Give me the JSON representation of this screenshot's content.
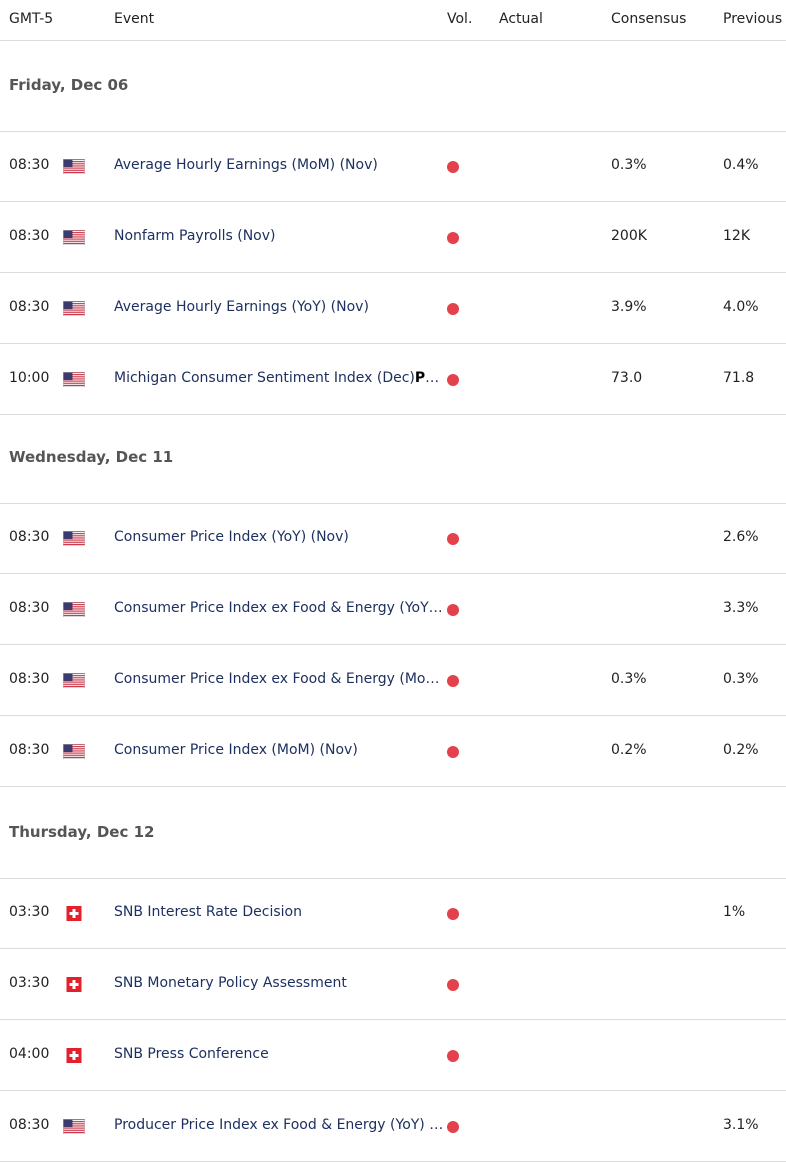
{
  "header": {
    "timezone": "GMT-5",
    "event": "Event",
    "vol": "Vol.",
    "actual": "Actual",
    "consensus": "Consensus",
    "previous": "Previous"
  },
  "colors": {
    "volume_high": "#e3424c",
    "event_text": "#1d3060",
    "divider": "#dcdcdc"
  },
  "sections": [
    {
      "date": "Friday, Dec 06",
      "rows": [
        {
          "time": "08:30",
          "flag": "us-flag-icon",
          "event": "Average Hourly Earnings (MoM) (Nov)",
          "tag": "",
          "actual": "",
          "consensus": "0.3%",
          "previous": "0.4%"
        },
        {
          "time": "08:30",
          "flag": "us-flag-icon",
          "event": "Nonfarm Payrolls (Nov)",
          "tag": "",
          "actual": "",
          "consensus": "200K",
          "previous": "12K"
        },
        {
          "time": "08:30",
          "flag": "us-flag-icon",
          "event": "Average Hourly Earnings (YoY) (Nov)",
          "tag": "",
          "actual": "",
          "consensus": "3.9%",
          "previous": "4.0%"
        },
        {
          "time": "10:00",
          "flag": "us-flag-icon",
          "event": "Michigan Consumer Sentiment Index (Dec)",
          "tag": "Pre…",
          "actual": "",
          "consensus": "73.0",
          "previous": "71.8"
        }
      ]
    },
    {
      "date": "Wednesday, Dec 11",
      "rows": [
        {
          "time": "08:30",
          "flag": "us-flag-icon",
          "event": "Consumer Price Index (YoY) (Nov)",
          "tag": "",
          "actual": "",
          "consensus": "",
          "previous": "2.6%"
        },
        {
          "time": "08:30",
          "flag": "us-flag-icon",
          "event": "Consumer Price Index ex Food & Energy (YoY) …",
          "tag": "",
          "actual": "",
          "consensus": "",
          "previous": "3.3%"
        },
        {
          "time": "08:30",
          "flag": "us-flag-icon",
          "event": "Consumer Price Index ex Food & Energy (MoM)…",
          "tag": "",
          "actual": "",
          "consensus": "0.3%",
          "previous": "0.3%"
        },
        {
          "time": "08:30",
          "flag": "us-flag-icon",
          "event": "Consumer Price Index (MoM) (Nov)",
          "tag": "",
          "actual": "",
          "consensus": "0.2%",
          "previous": "0.2%"
        }
      ]
    },
    {
      "date": "Thursday, Dec 12",
      "rows": [
        {
          "time": "03:30",
          "flag": "swiss-flag-icon",
          "event": "SNB Interest Rate Decision",
          "tag": "",
          "actual": "",
          "consensus": "",
          "previous": "1%"
        },
        {
          "time": "03:30",
          "flag": "swiss-flag-icon",
          "event": "SNB Monetary Policy Assessment",
          "tag": "",
          "actual": "",
          "consensus": "",
          "previous": ""
        },
        {
          "time": "04:00",
          "flag": "swiss-flag-icon",
          "event": "SNB Press Conference",
          "tag": "",
          "actual": "",
          "consensus": "",
          "previous": ""
        },
        {
          "time": "08:30",
          "flag": "us-flag-icon",
          "event": "Producer Price Index ex Food & Energy (YoY) (…",
          "tag": "",
          "actual": "",
          "consensus": "",
          "previous": "3.1%"
        }
      ]
    }
  ]
}
